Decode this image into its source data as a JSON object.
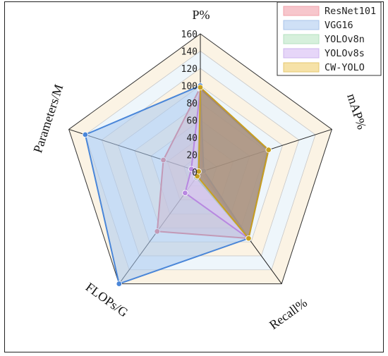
{
  "chart_data": {
    "type": "radar",
    "axes": [
      "P%",
      "mAP%",
      "Recall%",
      "FLOPs/G",
      "Parameters/M"
    ],
    "ticks": [
      "0",
      "20",
      "40",
      "60",
      "80",
      "100",
      "120",
      "140",
      "160"
    ],
    "rlim": [
      0,
      160
    ],
    "legend_position": "top-right",
    "series": [
      {
        "name": "ResNet101",
        "values": [
          98,
          2,
          95,
          85,
          45
        ],
        "line": "#e06070",
        "fill": "#f2b0b8",
        "fill_opacity": 0.55
      },
      {
        "name": "VGG16",
        "values": [
          100,
          4,
          95,
          160,
          140
        ],
        "line": "#4a86d8",
        "fill": "#a9c8f0",
        "fill_opacity": 0.55
      },
      {
        "name": "YOLOv8n",
        "values": [
          96,
          82,
          95,
          8,
          3
        ],
        "line": "#7fbf90",
        "fill": "#c6e8cf",
        "fill_opacity": 0.55
      },
      {
        "name": "YOLOv8s",
        "values": [
          97,
          83,
          95,
          30,
          11
        ],
        "line": "#b888e0",
        "fill": "#dcc6f4",
        "fill_opacity": 0.55
      },
      {
        "name": "CW-YOLO",
        "values": [
          98,
          83,
          95,
          6,
          2
        ],
        "line": "#c8a020",
        "fill": "#8c6a3c",
        "fill_opacity": 0.55
      }
    ]
  }
}
